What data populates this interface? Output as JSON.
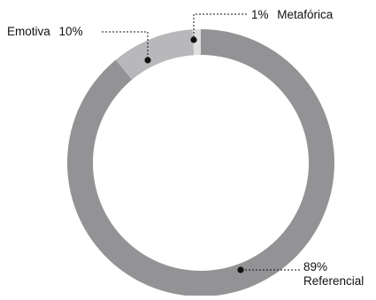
{
  "chart_data": {
    "type": "pie",
    "variant": "donut",
    "title": "",
    "categories": [
      "Referencial",
      "Emotiva",
      "Metafórica"
    ],
    "values": [
      89,
      10,
      1
    ],
    "colors": [
      "#939396",
      "#b8b8ba",
      "#dededf"
    ],
    "legend": "none",
    "data_labels": [
      {
        "name": "Referencial",
        "pct": "89%"
      },
      {
        "name": "Emotiva",
        "pct": "10%"
      },
      {
        "name": "Metafórica",
        "pct": "1%"
      }
    ]
  }
}
